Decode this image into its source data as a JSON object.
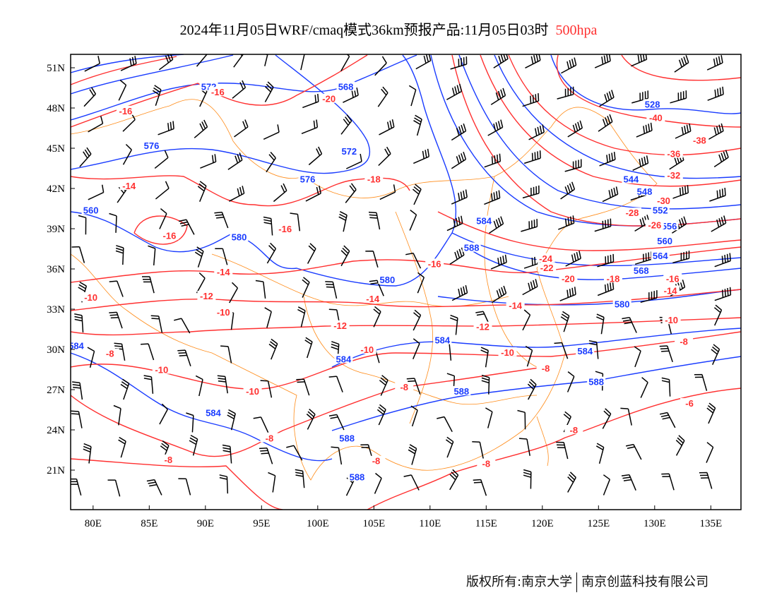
{
  "title": {
    "main": "2024年11月05日WRF/cmaq模式36km预报产品:11月05日03时",
    "level": "500hpa"
  },
  "footer": {
    "left": "版权所有:南京大学",
    "right": "南京创蓝科技有限公司"
  },
  "colors": {
    "height": "#1a3cff",
    "temperature": "#ff3030",
    "boundary": "#ff8c1a",
    "wind": "#000000"
  },
  "axes": {
    "lon_ticks": [
      "80E",
      "85E",
      "90E",
      "95E",
      "100E",
      "105E",
      "110E",
      "115E",
      "120E",
      "125E",
      "130E",
      "135E"
    ],
    "lon_values": [
      80,
      85,
      90,
      95,
      100,
      105,
      110,
      115,
      120,
      125,
      130,
      135
    ],
    "lat_ticks": [
      "51N",
      "48N",
      "45N",
      "42N",
      "39N",
      "36N",
      "33N",
      "30N",
      "27N",
      "24N",
      "21N"
    ],
    "lat_values": [
      51,
      48,
      45,
      42,
      39,
      36,
      33,
      30,
      27,
      24,
      21
    ],
    "lon_range": [
      78,
      138
    ],
    "lat_range": [
      18,
      52
    ]
  },
  "height_labels": [
    {
      "t": "568",
      "lon": 102.5,
      "lat": 49.6
    },
    {
      "t": "572",
      "lon": 90.3,
      "lat": 49.6
    },
    {
      "t": "576",
      "lon": 85.2,
      "lat": 45.2
    },
    {
      "t": "572",
      "lon": 102.8,
      "lat": 44.8
    },
    {
      "t": "576",
      "lon": 99.1,
      "lat": 42.7
    },
    {
      "t": "560",
      "lon": 79.8,
      "lat": 40.4
    },
    {
      "t": "580",
      "lon": 93,
      "lat": 38.4
    },
    {
      "t": "580",
      "lon": 106.2,
      "lat": 35.2
    },
    {
      "t": "584",
      "lon": 111.1,
      "lat": 30.7
    },
    {
      "t": "584",
      "lon": 78.5,
      "lat": 30.3
    },
    {
      "t": "584",
      "lon": 102.3,
      "lat": 29.3
    },
    {
      "t": "584",
      "lon": 90.7,
      "lat": 25.3
    },
    {
      "t": "588",
      "lon": 112.8,
      "lat": 26.9
    },
    {
      "t": "588",
      "lon": 102.6,
      "lat": 23.4
    },
    {
      "t": "588",
      "lon": 103.5,
      "lat": 20.5
    },
    {
      "t": "584",
      "lon": 114.8,
      "lat": 39.6
    },
    {
      "t": "588",
      "lon": 113.7,
      "lat": 37.6
    },
    {
      "t": "528",
      "lon": 129.8,
      "lat": 48.3
    },
    {
      "t": "544",
      "lon": 127.9,
      "lat": 42.7
    },
    {
      "t": "548",
      "lon": 129.1,
      "lat": 41.8
    },
    {
      "t": "552",
      "lon": 130.5,
      "lat": 40.4
    },
    {
      "t": "556",
      "lon": 131.3,
      "lat": 39.2
    },
    {
      "t": "560",
      "lon": 130.9,
      "lat": 38.1
    },
    {
      "t": "564",
      "lon": 130.5,
      "lat": 37
    },
    {
      "t": "568",
      "lon": 128.8,
      "lat": 35.9
    },
    {
      "t": "580",
      "lon": 127.1,
      "lat": 33.4
    },
    {
      "t": "584",
      "lon": 123.8,
      "lat": 29.9
    },
    {
      "t": "588",
      "lon": 124.8,
      "lat": 27.6
    }
  ],
  "temperature_labels": [
    {
      "t": "-16",
      "lon": 91.1,
      "lat": 49.2
    },
    {
      "t": "-16",
      "lon": 82.9,
      "lat": 47.8
    },
    {
      "t": "-20",
      "lon": 101,
      "lat": 48.7
    },
    {
      "t": "-14",
      "lon": 83.2,
      "lat": 42.2
    },
    {
      "t": "-18",
      "lon": 105,
      "lat": 42.7
    },
    {
      "t": "-16",
      "lon": 86.8,
      "lat": 38.5
    },
    {
      "t": "-16",
      "lon": 97.1,
      "lat": 39
    },
    {
      "t": "-14",
      "lon": 91.6,
      "lat": 35.8
    },
    {
      "t": "-16",
      "lon": 110.4,
      "lat": 36.4
    },
    {
      "t": "-12",
      "lon": 90.1,
      "lat": 34
    },
    {
      "t": "-14",
      "lon": 104.9,
      "lat": 33.8
    },
    {
      "t": "-10",
      "lon": 79.8,
      "lat": 33.9
    },
    {
      "t": "-10",
      "lon": 91.6,
      "lat": 32.8
    },
    {
      "t": "-12",
      "lon": 102,
      "lat": 31.8
    },
    {
      "t": "-12",
      "lon": 114.7,
      "lat": 31.7
    },
    {
      "t": "-10",
      "lon": 104.4,
      "lat": 30
    },
    {
      "t": "-10",
      "lon": 116.9,
      "lat": 29.8
    },
    {
      "t": "-8",
      "lon": 81.5,
      "lat": 29.7
    },
    {
      "t": "-10",
      "lon": 86.1,
      "lat": 28.5
    },
    {
      "t": "-10",
      "lon": 94.2,
      "lat": 26.9
    },
    {
      "t": "-8",
      "lon": 107.7,
      "lat": 27.2
    },
    {
      "t": "-8",
      "lon": 120.3,
      "lat": 28.6
    },
    {
      "t": "-8",
      "lon": 95.7,
      "lat": 23.4
    },
    {
      "t": "-8",
      "lon": 86.7,
      "lat": 21.8
    },
    {
      "t": "-8",
      "lon": 105.2,
      "lat": 21.7
    },
    {
      "t": "-8",
      "lon": 115,
      "lat": 21.5
    },
    {
      "t": "-8",
      "lon": 122.8,
      "lat": 24
    },
    {
      "t": "-6",
      "lon": 133.1,
      "lat": 26
    },
    {
      "t": "-8",
      "lon": 132.6,
      "lat": 30.6
    },
    {
      "t": "-10",
      "lon": 131.5,
      "lat": 32.2
    },
    {
      "t": "-14",
      "lon": 117.6,
      "lat": 33.3
    },
    {
      "t": "-14",
      "lon": 131.4,
      "lat": 34.4
    },
    {
      "t": "-16",
      "lon": 131.6,
      "lat": 35.3
    },
    {
      "t": "-18",
      "lon": 126.3,
      "lat": 35.3
    },
    {
      "t": "-20",
      "lon": 122.3,
      "lat": 35.3
    },
    {
      "t": "-22",
      "lon": 120.4,
      "lat": 36.1
    },
    {
      "t": "-24",
      "lon": 120.3,
      "lat": 36.8
    },
    {
      "t": "-26",
      "lon": 130,
      "lat": 39.3
    },
    {
      "t": "-28",
      "lon": 128,
      "lat": 40.2
    },
    {
      "t": "-30",
      "lon": 130.8,
      "lat": 41.1
    },
    {
      "t": "-32",
      "lon": 131.7,
      "lat": 43
    },
    {
      "t": "-36",
      "lon": 131.7,
      "lat": 44.6
    },
    {
      "t": "-38",
      "lon": 134,
      "lat": 45.6
    },
    {
      "t": "-40",
      "lon": 130.1,
      "lat": 47.3
    }
  ]
}
